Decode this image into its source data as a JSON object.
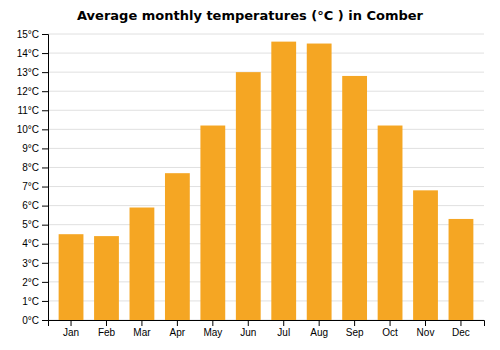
{
  "chart_data": {
    "type": "bar",
    "title": "Average monthly temperatures (°C ) in Comber",
    "categories": [
      "Jan",
      "Feb",
      "Mar",
      "Apr",
      "May",
      "Jun",
      "Jul",
      "Aug",
      "Sep",
      "Oct",
      "Nov",
      "Dec"
    ],
    "values": [
      4.5,
      4.4,
      5.9,
      7.7,
      10.2,
      13.0,
      14.6,
      14.5,
      12.8,
      10.2,
      6.8,
      5.3
    ],
    "color": "#F5A623",
    "ylim": [
      0,
      15
    ],
    "yticks": [
      {
        "value": 0,
        "label": "0°C"
      },
      {
        "value": 1,
        "label": "1°C"
      },
      {
        "value": 2,
        "label": "2°C"
      },
      {
        "value": 3,
        "label": "3°C"
      },
      {
        "value": 4,
        "label": "4°C"
      },
      {
        "value": 5,
        "label": "5°C"
      },
      {
        "value": 6,
        "label": "6°C"
      },
      {
        "value": 7,
        "label": "7°C"
      },
      {
        "value": 8,
        "label": "8°C"
      },
      {
        "value": 9,
        "label": "9°C"
      },
      {
        "value": 10,
        "label": "10°C"
      },
      {
        "value": 11,
        "label": "11°C"
      },
      {
        "value": 12,
        "label": "12°C"
      },
      {
        "value": 13,
        "label": "13°C"
      },
      {
        "value": 14,
        "label": "14°C"
      },
      {
        "value": 15,
        "label": "15°C"
      }
    ],
    "grid": true
  }
}
